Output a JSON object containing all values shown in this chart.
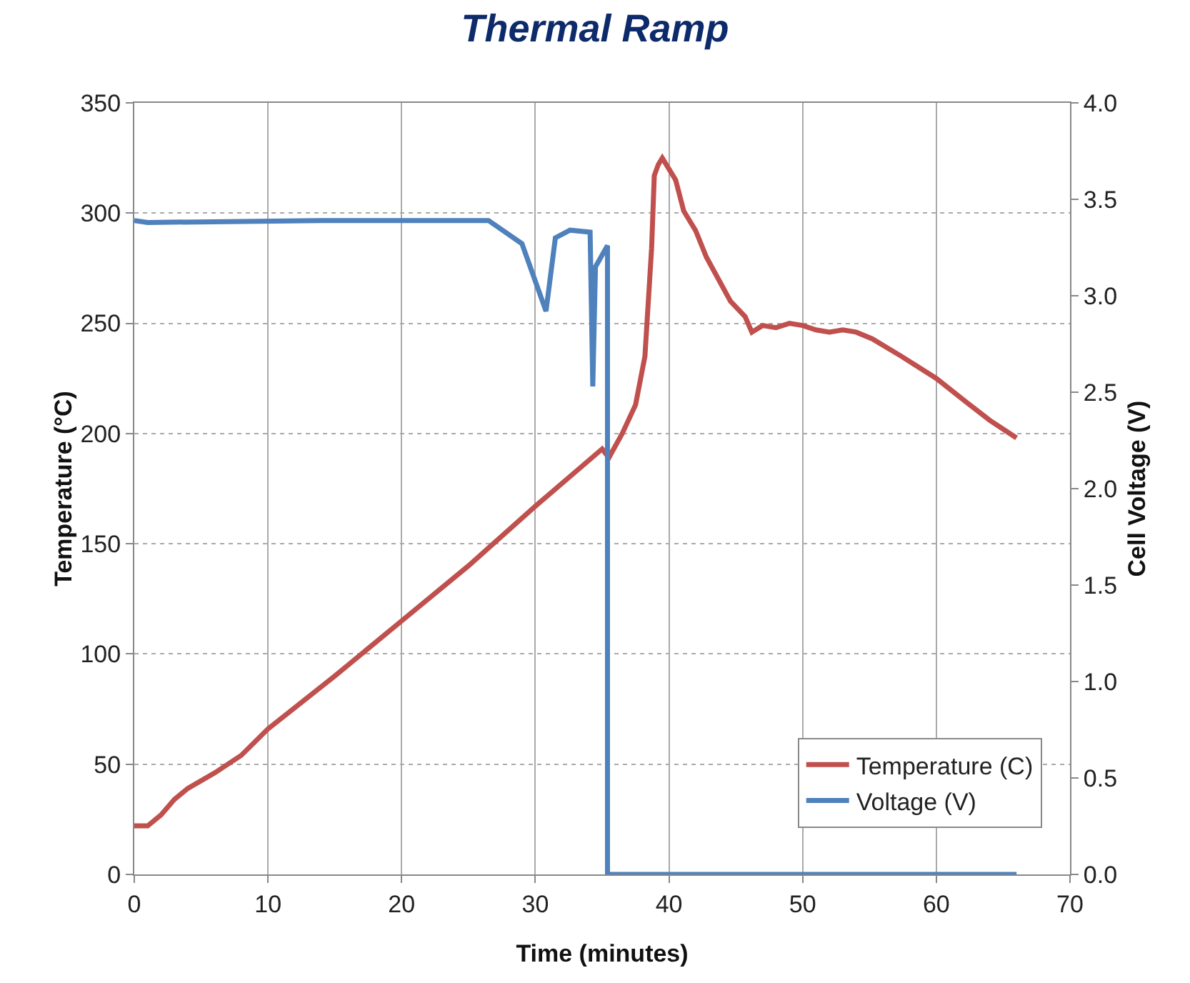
{
  "chart_data": {
    "type": "line",
    "title": "Thermal Ramp",
    "xlabel": "Time (minutes)",
    "ylabel": "Temperature (°C)",
    "y2label": "Cell Voltage (V)",
    "xlim": [
      0,
      70
    ],
    "xticks": [
      0,
      10,
      20,
      30,
      40,
      50,
      60,
      70
    ],
    "ylim": [
      0,
      350
    ],
    "yticks": [
      0,
      50,
      100,
      150,
      200,
      250,
      300,
      350
    ],
    "y2lim": [
      0,
      4
    ],
    "y2ticks": [
      {
        "value": 0,
        "label": "0.0"
      },
      {
        "value": 0.5,
        "label": "0.5"
      },
      {
        "value": 1,
        "label": "1.0"
      },
      {
        "value": 1.5,
        "label": "1.5"
      },
      {
        "value": 2,
        "label": "2.0"
      },
      {
        "value": 2.5,
        "label": "2.5"
      },
      {
        "value": 3,
        "label": "3.0"
      },
      {
        "value": 3.5,
        "label": "3.5"
      },
      {
        "value": 4,
        "label": "4.0"
      }
    ],
    "grid": true,
    "legend": "bottom right",
    "marker": "none",
    "line_style": "solid",
    "series": [
      {
        "name": "Temperature (C)",
        "color": "#c0504d",
        "x": [
          0,
          1,
          2,
          3,
          4,
          6,
          8,
          10,
          15,
          20,
          25,
          30,
          35,
          35.5,
          36.5,
          37.5,
          38.2,
          38.7,
          38.9,
          39.2,
          39.5,
          40,
          40.5,
          41.1,
          42,
          42.8,
          44.6,
          45.7,
          46.2,
          47,
          48,
          49,
          50,
          51,
          52,
          53,
          54,
          55.2,
          57.4,
          60,
          62.3,
          64,
          66
        ],
        "values": [
          22,
          22,
          27,
          34,
          39,
          46,
          54,
          66,
          90,
          115,
          140,
          167,
          193,
          189,
          200,
          213,
          235,
          284,
          317,
          322,
          325,
          320,
          315,
          301,
          292,
          280,
          260,
          253,
          246,
          249,
          248,
          250,
          249,
          247,
          246,
          247,
          246,
          243,
          235,
          225,
          214,
          206,
          198
        ]
      },
      {
        "name": "Voltage (V)",
        "color": "#4f81bd",
        "axis": "y2",
        "x": [
          0,
          1,
          14,
          26.5,
          29,
          30.8,
          31.5,
          32.6,
          34.1,
          34.3,
          34.5,
          35.4,
          35.4,
          66
        ],
        "values": [
          3.39,
          3.38,
          3.39,
          3.39,
          3.27,
          2.92,
          3.3,
          3.34,
          3.33,
          2.53,
          3.15,
          3.26,
          0,
          0
        ]
      }
    ]
  }
}
